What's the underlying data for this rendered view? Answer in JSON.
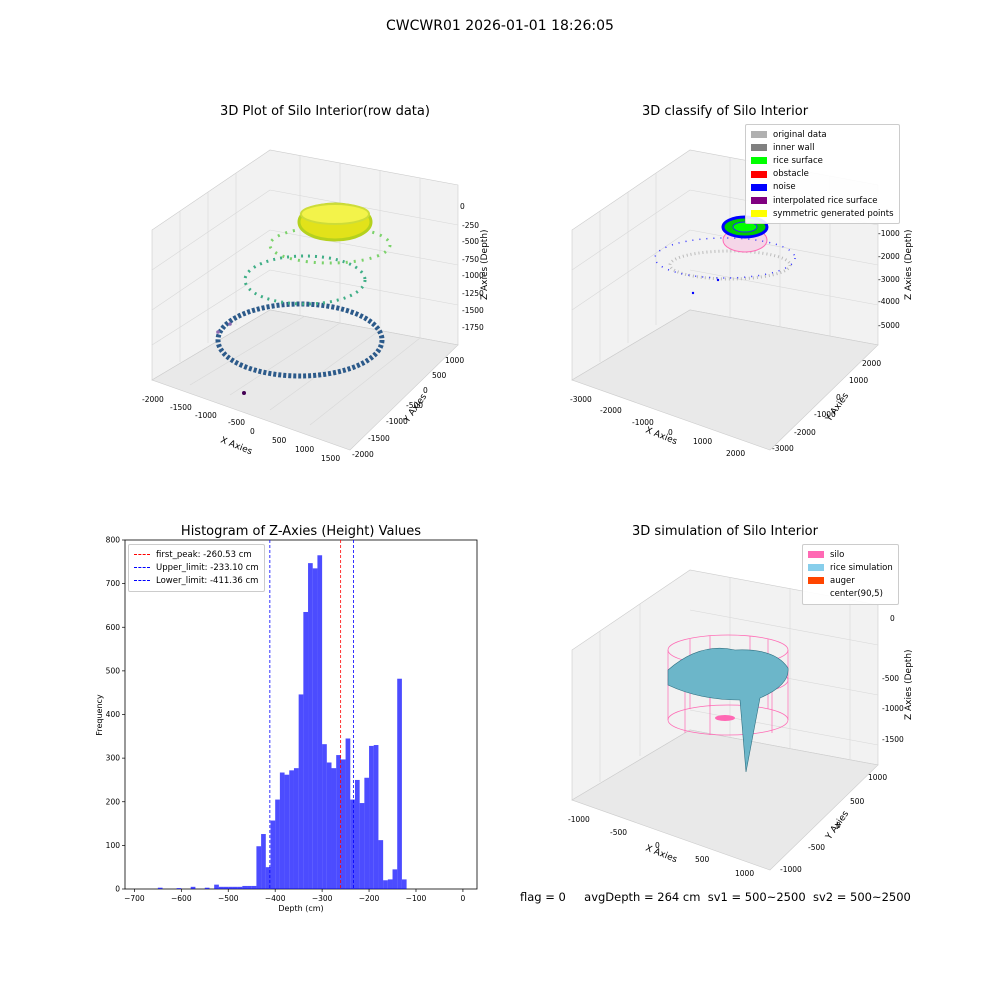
{
  "suptitle": "CWCWR01 2026-01-01 18:26:05",
  "panels": {
    "raw": {
      "title": "3D Plot of Silo Interior(row data)",
      "xlabel": "X Axies",
      "ylabel": "Y Axies",
      "zlabel": "Z Axies (Depth)",
      "xticks": [
        "-2000",
        "-1500",
        "-1000",
        "-500",
        "0",
        "500",
        "1000",
        "1500"
      ],
      "yticks": [
        "1000",
        "500",
        "0",
        "-500",
        "-1000",
        "-1500",
        "-2000"
      ],
      "zticks": [
        "0",
        "-250",
        "-500",
        "-750",
        "-1000",
        "-1250",
        "-1500",
        "-1750"
      ]
    },
    "classify": {
      "title": "3D classify of Silo Interior",
      "xlabel": "X Axies",
      "ylabel": "Y Axies",
      "zlabel": "Z Axies (Depth)",
      "xticks": [
        "-3000",
        "-2000",
        "-1000",
        "0",
        "1000",
        "2000"
      ],
      "yticks": [
        "2000",
        "1000",
        "0",
        "-1000",
        "-2000",
        "-3000"
      ],
      "zticks": [
        "-1000",
        "-2000",
        "-3000",
        "-4000",
        "-5000"
      ],
      "legend": [
        {
          "label": "original data",
          "color": "#b0b0b0"
        },
        {
          "label": "inner wall",
          "color": "#808080"
        },
        {
          "label": "rice surface",
          "color": "#00ff00"
        },
        {
          "label": "obstacle",
          "color": "#ff0000"
        },
        {
          "label": "noise",
          "color": "#0000ff"
        },
        {
          "label": "interpolated rice surface",
          "color": "#800080"
        },
        {
          "label": "symmetric generated points",
          "color": "#ffff00"
        }
      ]
    },
    "sim": {
      "title": "3D simulation of Silo Interior",
      "xlabel": "X Axies",
      "ylabel": "Y Axies",
      "zlabel": "Z Axies (Depth)",
      "xticks": [
        "-1000",
        "-500",
        "0",
        "500",
        "1000"
      ],
      "yticks": [
        "1000",
        "500",
        "0",
        "-500",
        "-1000"
      ],
      "zticks": [
        "0",
        "-500",
        "-1000",
        "-1500"
      ],
      "legend": [
        {
          "label": "silo",
          "color": "#ff69b4"
        },
        {
          "label": "rice simulation",
          "color": "#87ceeb"
        },
        {
          "label": "auger",
          "color": "#ff4500"
        },
        {
          "label": "center(90,5)",
          "color": ""
        }
      ]
    }
  },
  "footer": {
    "flag": "flag = 0",
    "avg": "avgDepth = 264 cm",
    "sv1": "sv1 = 500~2500",
    "sv2": "sv2 = 500~2500"
  },
  "chart_data": {
    "type": "bar",
    "title": "Histogram of Z-Axies (Height) Values",
    "xlabel": "Depth (cm)",
    "ylabel": "Frequency",
    "xlim": [
      -720,
      30
    ],
    "ylim": [
      0,
      800
    ],
    "xticks": [
      -700,
      -600,
      -500,
      -400,
      -300,
      -200,
      -100,
      0
    ],
    "yticks": [
      0,
      100,
      200,
      300,
      400,
      500,
      600,
      700,
      800
    ],
    "bar_color": "#0000ff",
    "bin_width": 10,
    "bins": [
      {
        "x0": -650,
        "value": 3
      },
      {
        "x0": -610,
        "value": 2
      },
      {
        "x0": -580,
        "value": 5
      },
      {
        "x0": -550,
        "value": 3
      },
      {
        "x0": -530,
        "value": 10
      },
      {
        "x0": -520,
        "value": 5
      },
      {
        "x0": -510,
        "value": 5
      },
      {
        "x0": -500,
        "value": 5
      },
      {
        "x0": -490,
        "value": 5
      },
      {
        "x0": -480,
        "value": 5
      },
      {
        "x0": -470,
        "value": 7
      },
      {
        "x0": -460,
        "value": 7
      },
      {
        "x0": -450,
        "value": 7
      },
      {
        "x0": -440,
        "value": 98
      },
      {
        "x0": -430,
        "value": 126
      },
      {
        "x0": -420,
        "value": 50
      },
      {
        "x0": -410,
        "value": 157
      },
      {
        "x0": -400,
        "value": 205
      },
      {
        "x0": -390,
        "value": 267
      },
      {
        "x0": -380,
        "value": 262
      },
      {
        "x0": -370,
        "value": 272
      },
      {
        "x0": -360,
        "value": 277
      },
      {
        "x0": -350,
        "value": 446
      },
      {
        "x0": -340,
        "value": 635
      },
      {
        "x0": -330,
        "value": 747
      },
      {
        "x0": -320,
        "value": 735
      },
      {
        "x0": -310,
        "value": 765
      },
      {
        "x0": -300,
        "value": 332
      },
      {
        "x0": -290,
        "value": 290
      },
      {
        "x0": -280,
        "value": 277
      },
      {
        "x0": -270,
        "value": 307
      },
      {
        "x0": -260,
        "value": 297
      },
      {
        "x0": -250,
        "value": 345
      },
      {
        "x0": -240,
        "value": 205
      },
      {
        "x0": -230,
        "value": 250
      },
      {
        "x0": -220,
        "value": 197
      },
      {
        "x0": -210,
        "value": 255
      },
      {
        "x0": -200,
        "value": 328
      },
      {
        "x0": -190,
        "value": 330
      },
      {
        "x0": -180,
        "value": 112
      },
      {
        "x0": -170,
        "value": 20
      },
      {
        "x0": -160,
        "value": 22
      },
      {
        "x0": -150,
        "value": 45
      },
      {
        "x0": -140,
        "value": 482
      },
      {
        "x0": -130,
        "value": 22
      }
    ],
    "x_scale_note": "",
    "vlines": [
      {
        "label": "first_peak: -260.53 cm",
        "x": -260.53,
        "color": "#ff0000"
      },
      {
        "label": "Upper_limit: -233.10 cm",
        "x": -233.1,
        "color": "#0000ff"
      },
      {
        "label": "Lower_limit: -411.36 cm",
        "x": -411.36,
        "color": "#0000ff"
      }
    ]
  }
}
